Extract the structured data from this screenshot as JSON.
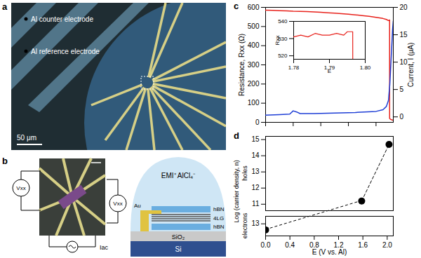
{
  "panels": {
    "a": {
      "letter": "a",
      "counter_label": "Al counter electrode",
      "reference_label": "Al reference electrode",
      "scale_bar": "50 μm"
    },
    "b": {
      "letter": "b",
      "meter_label": "Vxx",
      "source_label": "Iac",
      "electrolyte": "EMI⁺ AlCl₄⁻",
      "layers": [
        "hBN",
        "4LG",
        "hBN"
      ],
      "contact": "Au",
      "oxide": "SiO₂",
      "substrate": "Si"
    }
  },
  "chart_data": [
    {
      "panel": "c",
      "type": "line",
      "ylabel": "Resistance, Rxx (Ω)",
      "y2label": "Current, I (μA)",
      "xlim": [
        0,
        1.85
      ],
      "xticks": [
        0,
        0.4,
        0.8,
        1.2,
        1.6
      ],
      "ylim": [
        0,
        600
      ],
      "yticks": [
        0,
        100,
        200,
        300,
        400,
        500,
        600
      ],
      "y2lim": [
        -1,
        20
      ],
      "y2ticks": [
        0,
        5,
        10,
        15,
        20
      ],
      "tick_labels": "y",
      "series": [
        {
          "color": "#e8221c",
          "x": [
            0,
            0.1,
            0.2,
            0.3,
            0.4,
            0.5,
            0.6,
            0.7,
            0.8,
            0.9,
            1.0,
            1.1,
            1.2,
            1.3,
            1.4,
            1.5,
            1.6,
            1.7,
            1.75,
            1.78,
            1.79,
            1.7965,
            1.797,
            1.81,
            1.83,
            1.85
          ],
          "values": [
            585,
            584,
            583,
            582,
            580,
            579,
            578,
            576,
            574,
            572,
            570,
            567,
            564,
            561,
            557,
            553,
            548,
            542,
            537,
            531,
            532,
            534,
            20,
            16,
            13,
            11
          ]
        },
        {
          "color": "#1f3fd6",
          "axis": "y2",
          "x": [
            0,
            0.2,
            0.35,
            0.4,
            0.45,
            0.5,
            0.7,
            1.0,
            1.3,
            1.6,
            1.7,
            1.75,
            1.78,
            1.8,
            1.82,
            1.84,
            1.85
          ],
          "values": [
            0.3,
            0.4,
            0.5,
            1.1,
            0.9,
            0.6,
            0.6,
            0.7,
            0.8,
            1.0,
            1.3,
            1.9,
            3,
            6,
            11,
            16,
            17.5
          ]
        }
      ],
      "inset": {
        "xlabel": "E",
        "ylabel": "Rxx",
        "xlim": [
          1.78,
          1.8
        ],
        "xticks": [
          1.78,
          1.79,
          {
            "value": 1.8,
            "label": "1.80"
          }
        ],
        "ylim": [
          518,
          540
        ],
        "yticks": [
          520,
          530,
          540
        ],
        "color": "#e8221c",
        "x": [
          1.78,
          1.782,
          1.784,
          1.786,
          1.788,
          1.79,
          1.792,
          1.794,
          1.795,
          1.7965,
          1.797
        ],
        "values": [
          531,
          532,
          531,
          533,
          532,
          532,
          533,
          532,
          534,
          534,
          20
        ]
      }
    },
    {
      "panel": "d",
      "type": "line",
      "marker": "circle",
      "line_style": "dashed",
      "color": "#000000",
      "xlabel": "E (V vs. Al)",
      "ylabel": "Log (carrier density, n)",
      "xlim": [
        0,
        2.1
      ],
      "xticks": [
        {
          "value": 0,
          "label": "0.0"
        },
        0.4,
        0.8,
        1.2,
        1.6,
        {
          "value": 2,
          "label": "2.0"
        }
      ],
      "series": [
        {
          "name": "electrons",
          "x": [
            0
          ],
          "values": [
            13.4
          ],
          "ylim": [
            13.8,
            12.5
          ],
          "yticks": [
            13
          ]
        },
        {
          "name": "holes",
          "x": [
            1.58,
            2.03
          ],
          "values": [
            11.2,
            14.7
          ],
          "ylim": [
            10.6,
            15.2
          ],
          "yticks": [
            11,
            12,
            13,
            14,
            15
          ]
        }
      ]
    }
  ]
}
